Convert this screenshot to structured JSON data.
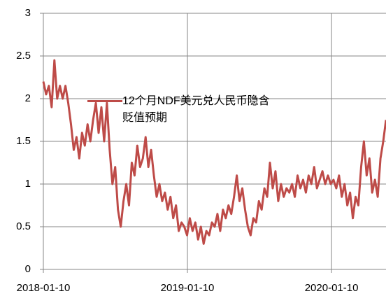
{
  "chart_data": {
    "type": "line",
    "x": [
      "2018-01-10",
      "2018-01-17",
      "2018-01-24",
      "2018-01-31",
      "2018-02-07",
      "2018-02-14",
      "2018-02-21",
      "2018-02-28",
      "2018-03-07",
      "2018-03-14",
      "2018-03-21",
      "2018-03-28",
      "2018-04-04",
      "2018-04-11",
      "2018-04-18",
      "2018-04-25",
      "2018-05-02",
      "2018-05-09",
      "2018-05-16",
      "2018-05-23",
      "2018-05-30",
      "2018-06-06",
      "2018-06-13",
      "2018-06-20",
      "2018-06-27",
      "2018-07-04",
      "2018-07-11",
      "2018-07-18",
      "2018-07-25",
      "2018-08-01",
      "2018-08-08",
      "2018-08-15",
      "2018-08-22",
      "2018-08-29",
      "2018-09-05",
      "2018-09-12",
      "2018-09-19",
      "2018-09-26",
      "2018-10-03",
      "2018-10-10",
      "2018-10-17",
      "2018-10-24",
      "2018-10-31",
      "2018-11-07",
      "2018-11-14",
      "2018-11-21",
      "2018-11-28",
      "2018-12-05",
      "2018-12-12",
      "2018-12-19",
      "2018-12-26",
      "2019-01-02",
      "2019-01-09",
      "2019-01-16",
      "2019-01-23",
      "2019-01-30",
      "2019-02-06",
      "2019-02-13",
      "2019-02-20",
      "2019-02-27",
      "2019-03-06",
      "2019-03-13",
      "2019-03-20",
      "2019-03-27",
      "2019-04-03",
      "2019-04-10",
      "2019-04-17",
      "2019-04-24",
      "2019-05-01",
      "2019-05-08",
      "2019-05-15",
      "2019-05-22",
      "2019-05-29",
      "2019-06-05",
      "2019-06-12",
      "2019-06-19",
      "2019-06-26",
      "2019-07-03",
      "2019-07-10",
      "2019-07-17",
      "2019-07-24",
      "2019-07-31",
      "2019-08-07",
      "2019-08-14",
      "2019-08-21",
      "2019-08-28",
      "2019-09-04",
      "2019-09-11",
      "2019-09-18",
      "2019-09-25",
      "2019-10-02",
      "2019-10-09",
      "2019-10-16",
      "2019-10-23",
      "2019-10-30",
      "2019-11-06",
      "2019-11-13",
      "2019-11-20",
      "2019-11-27",
      "2019-12-04",
      "2019-12-11",
      "2019-12-18",
      "2019-12-25",
      "2020-01-01",
      "2020-01-08",
      "2020-01-15",
      "2020-01-22",
      "2020-01-29",
      "2020-02-05",
      "2020-02-12",
      "2020-02-19",
      "2020-02-26",
      "2020-03-04",
      "2020-03-11",
      "2020-03-18",
      "2020-03-25",
      "2020-04-01",
      "2020-04-08",
      "2020-04-15",
      "2020-04-22",
      "2020-04-29",
      "2020-05-06",
      "2020-05-13",
      "2020-05-20",
      "2020-05-27"
    ],
    "series": [
      {
        "name": "12个月NDF美元兑人民币隐含贬值预期",
        "color": "#be4b48",
        "values": [
          2.2,
          2.05,
          2.15,
          1.9,
          2.45,
          2.0,
          2.15,
          2.0,
          2.15,
          1.95,
          1.7,
          1.4,
          1.55,
          1.3,
          1.6,
          1.45,
          1.7,
          1.5,
          1.75,
          1.95,
          1.6,
          1.9,
          1.5,
          1.95,
          1.4,
          1.0,
          1.2,
          0.7,
          0.5,
          0.8,
          1.0,
          0.75,
          1.25,
          1.1,
          1.45,
          1.2,
          1.3,
          1.55,
          1.2,
          1.4,
          1.1,
          0.85,
          1.0,
          0.8,
          0.9,
          0.7,
          0.85,
          0.6,
          0.75,
          0.45,
          0.55,
          0.5,
          0.4,
          0.6,
          0.45,
          0.55,
          0.35,
          0.5,
          0.3,
          0.45,
          0.4,
          0.55,
          0.5,
          0.65,
          0.45,
          0.7,
          0.6,
          0.75,
          0.65,
          0.85,
          1.1,
          0.8,
          0.95,
          0.7,
          0.5,
          0.4,
          0.6,
          0.55,
          0.8,
          0.7,
          0.95,
          0.85,
          1.25,
          0.95,
          1.15,
          0.8,
          1.0,
          0.85,
          0.95,
          0.9,
          1.0,
          0.85,
          1.1,
          0.95,
          1.05,
          0.9,
          1.1,
          1.0,
          1.2,
          0.95,
          1.05,
          1.15,
          1.0,
          1.1,
          1.0,
          1.05,
          0.95,
          1.1,
          0.85,
          1.0,
          0.75,
          0.9,
          0.6,
          0.85,
          0.75,
          1.2,
          1.5,
          1.1,
          1.3,
          0.9,
          1.05,
          0.85,
          1.3,
          1.5,
          1.75
        ]
      }
    ],
    "xlim": [
      "2018-01-10",
      "2020-05-27"
    ],
    "xticks": [
      "2018-01-10",
      "2019-01-10",
      "2020-01-10"
    ],
    "ylim": [
      0,
      3
    ],
    "yticks": [
      0,
      0.5,
      1,
      1.5,
      2,
      2.5,
      3
    ],
    "grid": true
  }
}
